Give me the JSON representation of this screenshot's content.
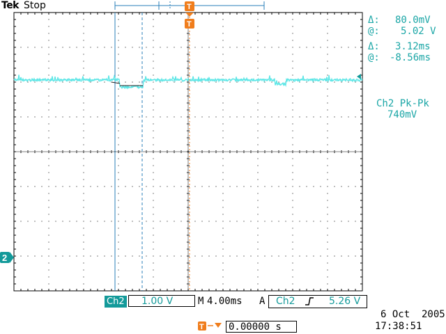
{
  "header": {
    "brand": "Tek",
    "state": "Stop"
  },
  "measurements": {
    "voltage_delta": "80.0mV",
    "voltage_at": "5.02 V",
    "time_delta": "3.12ms",
    "time_at": "-8.56ms",
    "delta_symbol": "Δ:",
    "at_symbol": "@:",
    "pkpk_title": "Ch2 Pk-Pk",
    "pkpk_value": "740mV"
  },
  "trigger_marker": {
    "label": "T"
  },
  "channel_marker": {
    "label": "2"
  },
  "status_bar": {
    "channel": "Ch2",
    "volts_div": "1.00 V",
    "time_div_prefix": "M",
    "time_div": "4.00ms",
    "trigger_mode": "A",
    "trigger_channel": "Ch2",
    "trigger_slope_icon": "rising-edge-icon",
    "trigger_level": "5.26 V",
    "trigger_position": "0.00000 s",
    "date": "6 Oct  2005",
    "time": "17:38:51"
  },
  "colors": {
    "trace": "#5ce6e6",
    "accent": "#139a9a",
    "trigger": "#f07d1c",
    "cursor": "#2a7fb8"
  }
}
